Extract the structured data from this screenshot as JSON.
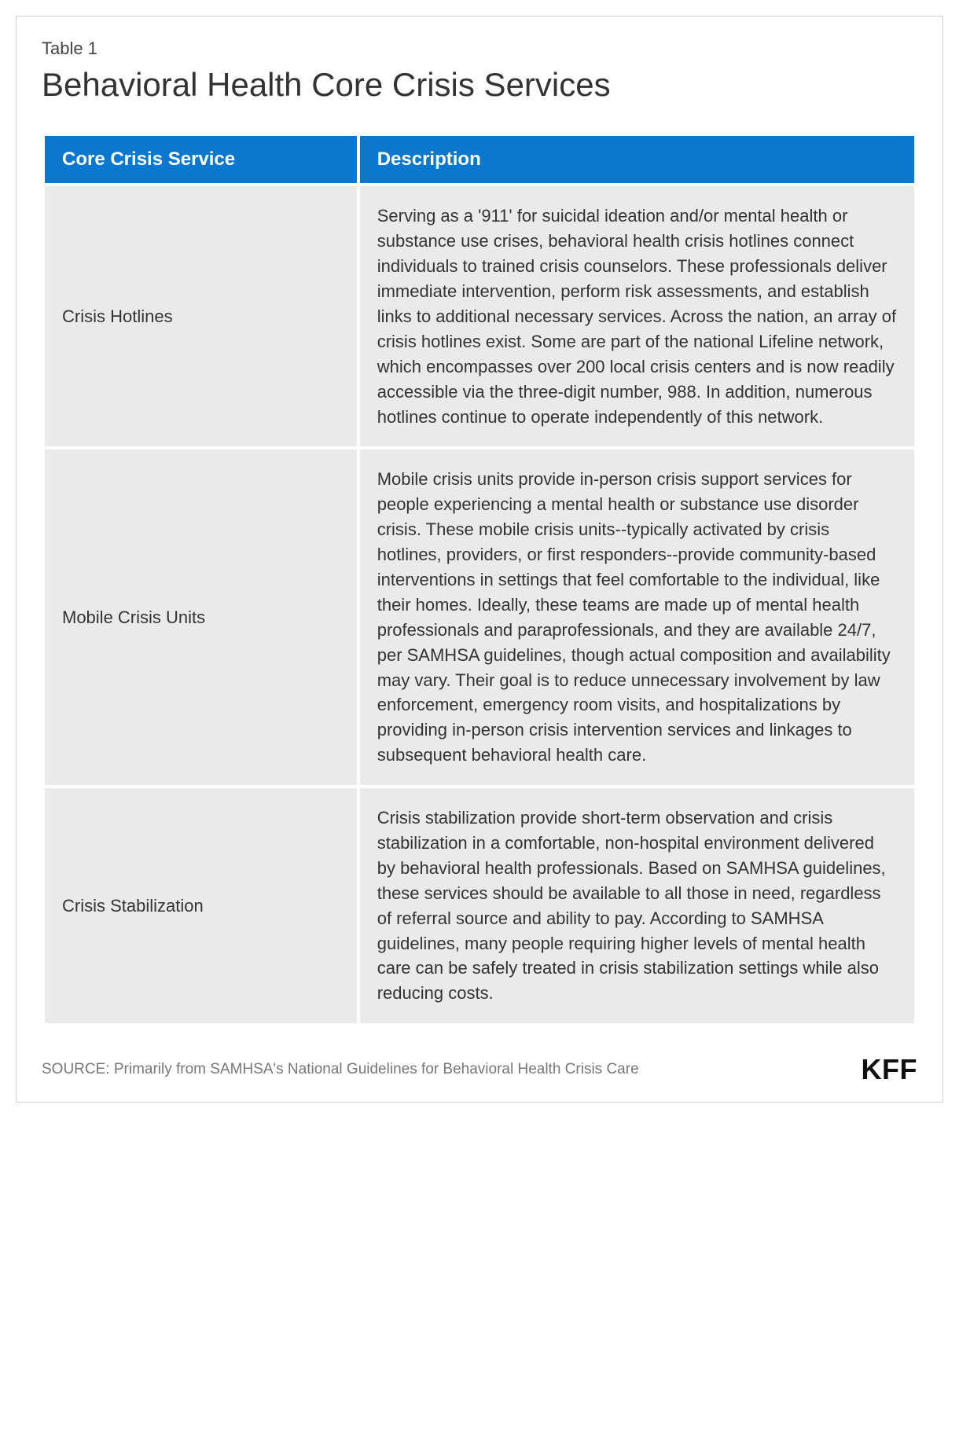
{
  "header": {
    "table_label": "Table 1",
    "title": "Behavioral Health Core Crisis Services"
  },
  "table": {
    "type": "table",
    "header_bg": "#0a78cf",
    "header_text_color": "#ffffff",
    "cell_bg": "#eaeaea",
    "cell_text_color": "#333333",
    "columns": [
      {
        "label": "Core Crisis Service",
        "width": "36%"
      },
      {
        "label": "Description",
        "width": "64%"
      }
    ],
    "rows": [
      {
        "service": "Crisis Hotlines",
        "description": "Serving as a '911' for suicidal ideation and/or mental health or substance use crises, behavioral health crisis hotlines connect individuals to trained crisis counselors. These professionals deliver immediate intervention, perform risk assessments, and establish links to additional necessary services. Across the nation, an array of crisis hotlines exist. Some are part of the national Lifeline network, which encompasses over 200 local crisis centers and is now readily accessible via the three-digit number, 988. In addition, numerous hotlines continue to operate independently of this network."
      },
      {
        "service": "Mobile Crisis Units",
        "description": "Mobile crisis units provide in-person crisis support services for people experiencing a mental health or substance use disorder crisis. These mobile crisis units--typically activated by crisis hotlines, providers, or first responders--provide community-based interventions in settings that feel comfortable to the individual, like their homes. Ideally, these teams are made up of mental health professionals and paraprofessionals, and they are available 24/7, per SAMHSA guidelines, though actual composition and availability may vary. Their goal is to reduce unnecessary involvement by law enforcement, emergency room visits, and hospitalizations by providing in-person crisis intervention services and linkages to subsequent behavioral health care."
      },
      {
        "service": "Crisis Stabilization",
        "description": "Crisis stabilization provide short-term observation and crisis stabilization in a comfortable, non-hospital environment delivered by behavioral health professionals. Based on SAMHSA guidelines, these services should be available to all those in need, regardless of referral source and ability to pay. According to SAMHSA guidelines, many people requiring higher levels of mental health care can be safely treated in crisis stabilization settings while also reducing costs."
      }
    ]
  },
  "footer": {
    "source": "SOURCE: Primarily from SAMHSA's National Guidelines for Behavioral Health Crisis Care",
    "logo": "KFF"
  }
}
